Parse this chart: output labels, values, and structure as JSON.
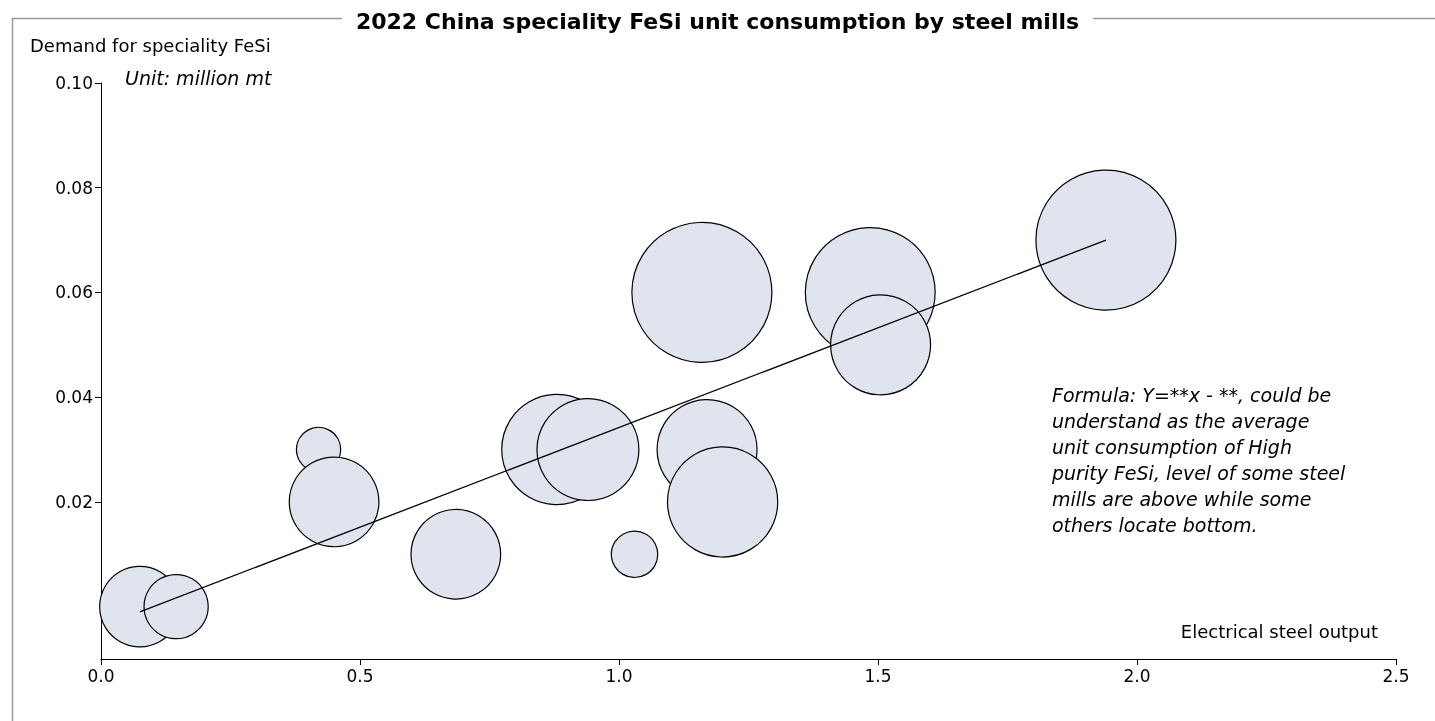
{
  "chart_data": {
    "type": "bubble",
    "title": "2022 China speciality FeSi unit consumption by steel mills",
    "ylabel": "Demand for speciality FeSi",
    "xlabel": "Electrical steel output",
    "annotations": [
      "Unit: million mt",
      "Formula: Y=**x - **, could be understand as the average unit consumption of High purity FeSi, level of some steel mills are above while some others locate bottom."
    ],
    "xlim": [
      0,
      2.5
    ],
    "xticks": [
      {
        "value": 0,
        "label": "0.0"
      },
      0.5,
      {
        "value": 1,
        "label": "1.0"
      },
      1.5,
      {
        "value": 2,
        "label": "2.0"
      },
      2.5
    ],
    "ylim": [
      -0.01,
      0.1
    ],
    "yticks": [
      0.02,
      0.04,
      0.06,
      0.08,
      {
        "value": 0.1,
        "label": "0.10"
      }
    ],
    "grid": false,
    "marker": "circle",
    "series": [
      {
        "color": "#dfe4ee",
        "x": [
          0.075,
          0.145,
          0.42,
          0.45,
          0.685,
          0.88,
          0.94,
          1.03,
          1.16,
          1.17,
          1.2,
          1.485,
          1.505,
          1.94
        ],
        "values": [
          0,
          0,
          0.03,
          0.02,
          0.01,
          0.03,
          0.03,
          0.01,
          0.06,
          0.03,
          0.02,
          0.06,
          0.05,
          0.07
        ],
        "sizes": [
          0.33,
          0.21,
          0.1,
          0.41,
          0.41,
          0.62,
          0.53,
          0.11,
          1,
          0.51,
          0.62,
          0.86,
          0.51,
          1
        ]
      },
      {
        "type": "line",
        "color": "#000000",
        "marker": "none",
        "line_style": "solid",
        "x": [
          0.075,
          1.94
        ],
        "values": [
          -0.001,
          0.07
        ]
      }
    ]
  }
}
